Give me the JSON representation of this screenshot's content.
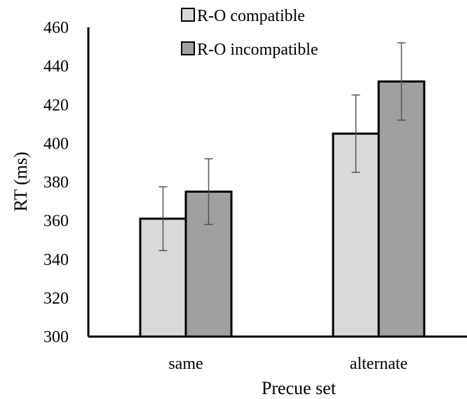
{
  "chart_data": {
    "type": "bar",
    "title": "",
    "xlabel": "Precue set",
    "ylabel": "RT (ms)",
    "ylim": [
      300,
      460
    ],
    "yticks": [
      300,
      320,
      340,
      360,
      380,
      400,
      420,
      440,
      460
    ],
    "categories": [
      "same",
      "alternate"
    ],
    "series": [
      {
        "name": "R-O compatible",
        "color": "#d9d9d9",
        "values": [
          361,
          405
        ],
        "errors": [
          16.5,
          20
        ]
      },
      {
        "name": "R-O incompatible",
        "color": "#a0a0a0",
        "values": [
          375,
          432
        ],
        "errors": [
          17,
          20
        ]
      }
    ],
    "legend_position": "top",
    "grid": false,
    "error_bars": true
  }
}
